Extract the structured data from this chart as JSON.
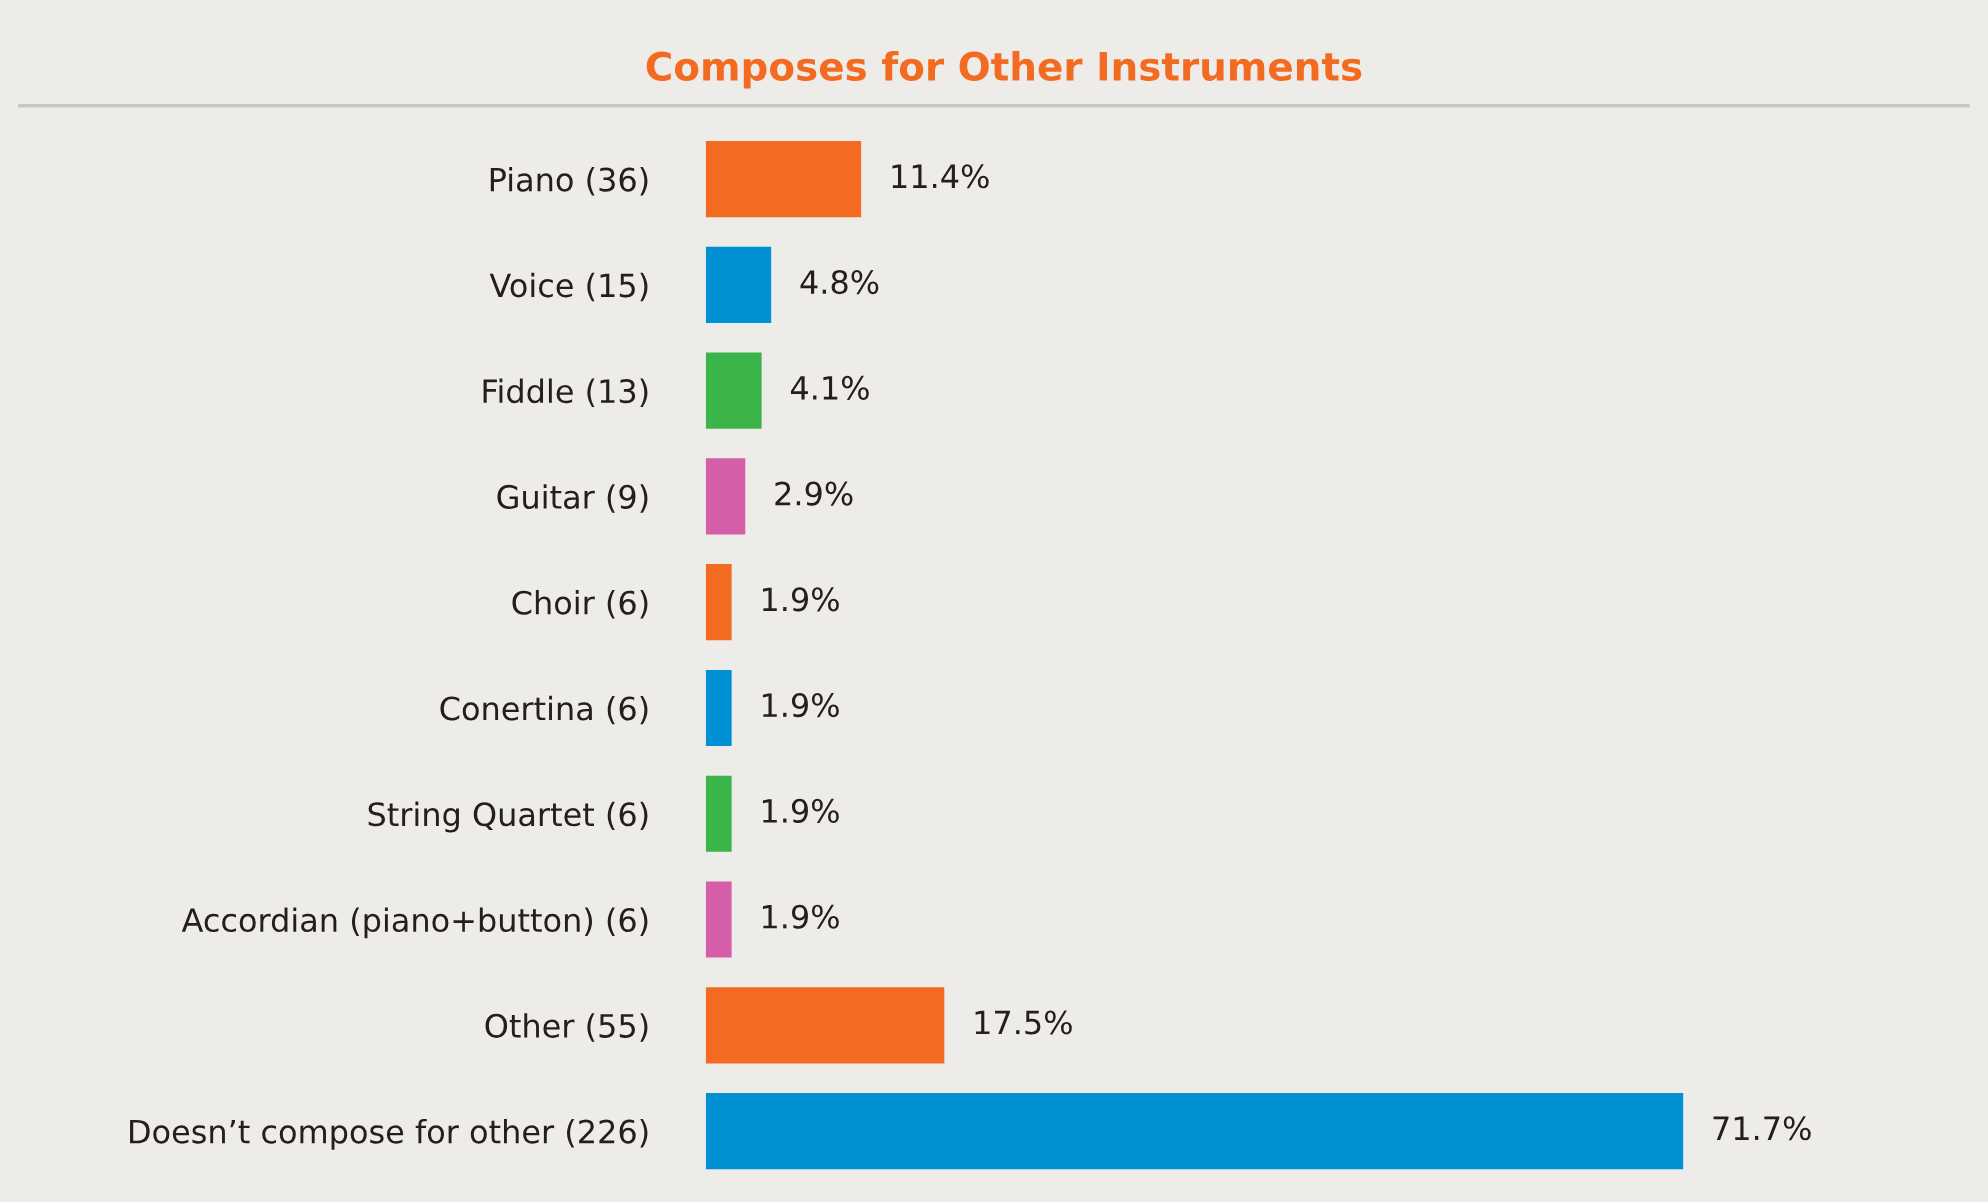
{
  "chart_data": {
    "type": "bar",
    "orientation": "horizontal",
    "title": "Composes for Other Instruments",
    "categories": [
      "Piano (36)",
      "Voice (15)",
      "Fiddle (13)",
      "Guitar (9)",
      "Choir (6)",
      "Conertina (6)",
      "String Quartet (6)",
      "Accordian (piano+button) (6)",
      "Other (55)",
      "Doesn’t compose for other (226)"
    ],
    "values": [
      11.4,
      4.8,
      4.1,
      2.9,
      1.9,
      1.9,
      1.9,
      1.9,
      17.5,
      71.7
    ],
    "colors": [
      "#f26b21",
      "#0091d5",
      "#3bb54a",
      "#d45ea8",
      "#f26b21",
      "#0091d5",
      "#3bb54a",
      "#d45ea8",
      "#f26b21",
      "#0091d5"
    ],
    "value_labels": [
      "11.4%",
      "4.8%",
      "4.1%",
      "2.9%",
      "1.9%",
      "1.9%",
      "1.9%",
      "1.9%",
      "17.5%",
      "71.7%"
    ],
    "grid": false,
    "legend": false
  }
}
